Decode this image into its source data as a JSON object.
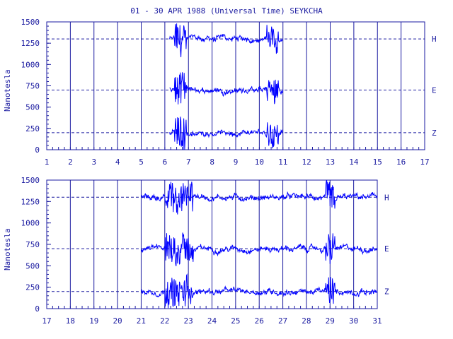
{
  "title": "01 - 30 APR 1988 (Universal Time) SEYKCHA",
  "colors": {
    "axis": "#1a1aa0",
    "trace": "#0000ff",
    "grid": "#1a1aa0"
  },
  "chart_data": [
    {
      "type": "line",
      "ylabel": "Nanotesla",
      "ylim": [
        0,
        1500
      ],
      "yticks": [
        "0",
        "250",
        "500",
        "750",
        "1000",
        "1250",
        "1500"
      ],
      "x_ticks": [
        "1",
        "2",
        "3",
        "4",
        "5",
        "6",
        "7",
        "8",
        "9",
        "10",
        "11",
        "12",
        "13",
        "14",
        "15",
        "16",
        "17"
      ],
      "xlim": [
        1,
        17
      ],
      "components": [
        {
          "name": "H",
          "baseline": 1300
        },
        {
          "name": "E",
          "baseline": 700
        },
        {
          "name": "Z",
          "baseline": 200
        }
      ],
      "data_range": [
        6.2,
        11.0
      ]
    },
    {
      "type": "line",
      "ylabel": "Nanotesla",
      "ylim": [
        0,
        1500
      ],
      "yticks": [
        "0",
        "250",
        "500",
        "750",
        "1000",
        "1250",
        "1500"
      ],
      "x_ticks": [
        "17",
        "18",
        "19",
        "20",
        "21",
        "22",
        "23",
        "24",
        "25",
        "26",
        "27",
        "28",
        "29",
        "30",
        "31"
      ],
      "xlim": [
        17,
        31
      ],
      "components": [
        {
          "name": "H",
          "baseline": 1300
        },
        {
          "name": "E",
          "baseline": 700
        },
        {
          "name": "Z",
          "baseline": 200
        }
      ],
      "data_range": [
        21.0,
        31.0
      ]
    }
  ]
}
